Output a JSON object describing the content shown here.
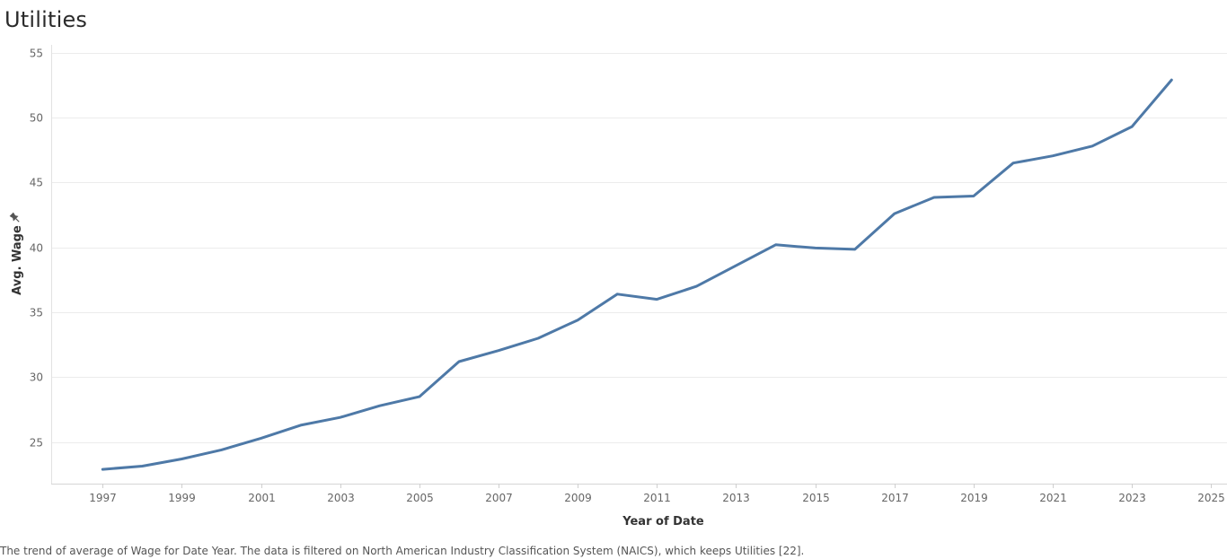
{
  "title": "Utilities",
  "caption": "The trend of average of Wage for Date Year. The data is filtered on North American Industry Classification System (NAICS), which keeps Utilities [22].",
  "chart_data": {
    "type": "line",
    "title": "Utilities",
    "xlabel": "Year of Date",
    "ylabel": "Avg. Wage",
    "xlim": [
      1995.7,
      2025.4
    ],
    "ylim": [
      21.8,
      55.6
    ],
    "xticks": [
      1997,
      1999,
      2001,
      2003,
      2005,
      2007,
      2009,
      2011,
      2013,
      2015,
      2017,
      2019,
      2021,
      2023,
      2025
    ],
    "yticks": [
      25,
      30,
      35,
      40,
      45,
      50,
      55
    ],
    "grid": true,
    "line_color": "#4e79a7",
    "ylabel_icon": "pin-icon",
    "x": [
      1997,
      1998,
      1999,
      2000,
      2001,
      2002,
      2003,
      2004,
      2005,
      2006,
      2007,
      2008,
      2009,
      2010,
      2011,
      2012,
      2013,
      2014,
      2015,
      2016,
      2017,
      2018,
      2019,
      2020,
      2021,
      2022,
      2023,
      2024
    ],
    "y": [
      22.9,
      23.15,
      23.7,
      24.4,
      25.3,
      26.3,
      26.9,
      27.8,
      28.5,
      31.2,
      32.05,
      33.0,
      34.4,
      36.4,
      36.0,
      37.0,
      38.6,
      40.2,
      39.95,
      39.85,
      42.6,
      43.85,
      43.95,
      46.5,
      47.05,
      47.8,
      49.3,
      52.9
    ]
  }
}
